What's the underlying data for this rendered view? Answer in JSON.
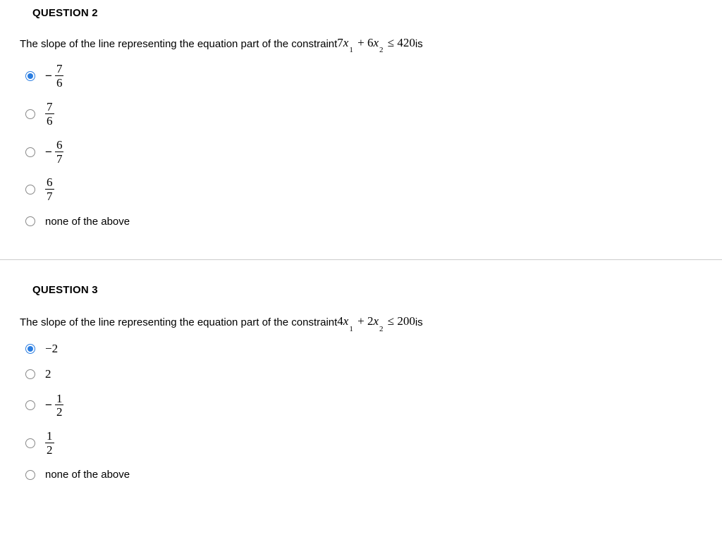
{
  "questions": [
    {
      "title": "QUESTION 2",
      "prompt_prefix": "The slope of the line representing the equation part of the constraint  ",
      "equation": {
        "coef1": "7",
        "var1": "x",
        "sub1": "1",
        "op": "+",
        "coef2": "6",
        "var2": "x",
        "sub2": "2",
        "rel": "≤",
        "rhs": "420"
      },
      "prompt_suffix": " is",
      "options": [
        {
          "type": "neg_frac",
          "num": "7",
          "den": "6",
          "selected": true
        },
        {
          "type": "frac",
          "num": "7",
          "den": "6",
          "selected": false
        },
        {
          "type": "neg_frac",
          "num": "6",
          "den": "7",
          "selected": false
        },
        {
          "type": "frac",
          "num": "6",
          "den": "7",
          "selected": false
        },
        {
          "type": "text",
          "text": "none of the above",
          "selected": false
        }
      ]
    },
    {
      "title": "QUESTION 3",
      "prompt_prefix": "The slope of the line representing the equation part of the constraint ",
      "equation": {
        "coef1": "4",
        "var1": "x",
        "sub1": "1",
        "op": "+",
        "coef2": "2",
        "var2": "x",
        "sub2": "2",
        "rel": "≤",
        "rhs": "200"
      },
      "prompt_suffix": " is",
      "options": [
        {
          "type": "math_text",
          "text": "−2",
          "selected": true
        },
        {
          "type": "math_text",
          "text": "2",
          "selected": false
        },
        {
          "type": "neg_frac",
          "num": "1",
          "den": "2",
          "selected": false
        },
        {
          "type": "frac",
          "num": "1",
          "den": "2",
          "selected": false
        },
        {
          "type": "text",
          "text": "none of the above",
          "selected": false
        }
      ]
    }
  ],
  "styling": {
    "text_color": "#000000",
    "accent_color": "#2a7de1",
    "radio_border": "#888888",
    "divider_color": "#cccccc",
    "background": "#ffffff",
    "body_font_size": 15,
    "math_font_size": 17,
    "math_font": "Times New Roman",
    "body_font": "Arial"
  }
}
